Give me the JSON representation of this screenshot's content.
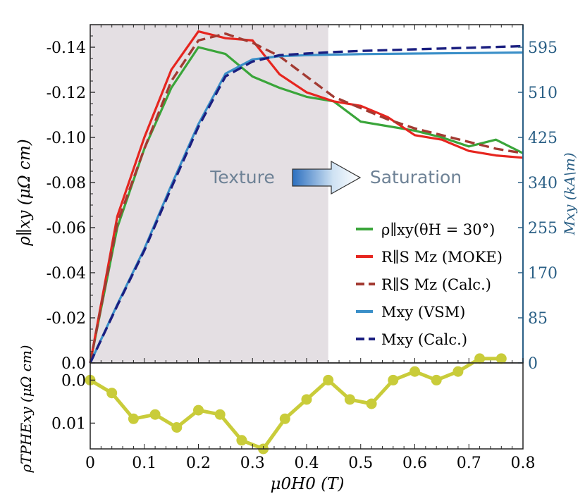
{
  "colors": {
    "green": "#3aa53a",
    "red": "#e6251f",
    "darkred": "#a33a32",
    "blue": "#3a8fc8",
    "navy": "#1b1f80",
    "yellow": "#c9cc3a",
    "shade": "#e4dfe3",
    "right_axis": "#2a5f85",
    "annotation": "#6e8296"
  },
  "chart_data": [
    {
      "type": "line",
      "xlim": [
        0,
        0.8
      ],
      "ylim": [
        0,
        -0.15
      ],
      "y2lim": [
        0,
        637.5
      ],
      "shaded_region": [
        0,
        0.44
      ],
      "grid": false,
      "legend_placement": "lower-right",
      "xticks": [
        "0",
        "0.1",
        "0.2",
        "0.3",
        "0.4",
        "0.5",
        "0.6",
        "0.7",
        "0.8"
      ],
      "yticks": [
        "0.0",
        "-0.02",
        "-0.04",
        "-0.06",
        "-0.08",
        "-0.10",
        "-0.12",
        "-0.14"
      ],
      "y2ticks": [
        "0",
        "85",
        "170",
        "255",
        "340",
        "425",
        "510",
        "595"
      ],
      "ylabel": "ρ∥xy (μΩ cm)",
      "y2label": "Mxy (kA\\m)",
      "annotations": {
        "left": "Texture",
        "right": "Saturation"
      },
      "series": [
        {
          "name": "ρ∥xy(θH = 30°)",
          "axis": "left",
          "style": "solid",
          "x": [
            0,
            0.05,
            0.1,
            0.15,
            0.2,
            0.25,
            0.3,
            0.35,
            0.4,
            0.45,
            0.5,
            0.55,
            0.6,
            0.65,
            0.7,
            0.75,
            0.8
          ],
          "y": [
            0,
            -0.06,
            -0.095,
            -0.122,
            -0.14,
            -0.137,
            -0.127,
            -0.122,
            -0.118,
            -0.116,
            -0.107,
            -0.105,
            -0.103,
            -0.1,
            -0.096,
            -0.099,
            -0.093
          ]
        },
        {
          "name": "R∥S Mz (MOKE)",
          "axis": "left",
          "style": "solid",
          "x": [
            0,
            0.05,
            0.1,
            0.15,
            0.2,
            0.25,
            0.3,
            0.35,
            0.4,
            0.45,
            0.5,
            0.55,
            0.6,
            0.65,
            0.7,
            0.75,
            0.8
          ],
          "y": [
            0,
            -0.065,
            -0.1,
            -0.13,
            -0.147,
            -0.144,
            -0.143,
            -0.128,
            -0.12,
            -0.116,
            -0.114,
            -0.109,
            -0.101,
            -0.099,
            -0.094,
            -0.092,
            -0.091
          ]
        },
        {
          "name": "R∥S Mz (Calc.)",
          "axis": "left",
          "style": "dashed",
          "x": [
            0,
            0.05,
            0.1,
            0.15,
            0.2,
            0.25,
            0.3,
            0.35,
            0.4,
            0.45,
            0.5,
            0.55,
            0.6,
            0.65,
            0.7,
            0.75,
            0.8
          ],
          "y": [
            0,
            -0.062,
            -0.095,
            -0.125,
            -0.143,
            -0.146,
            -0.142,
            -0.136,
            -0.127,
            -0.118,
            -0.113,
            -0.108,
            -0.104,
            -0.101,
            -0.098,
            -0.095,
            -0.093
          ]
        },
        {
          "name": "Mxy (VSM)",
          "axis": "right",
          "style": "solid",
          "x": [
            0,
            0.05,
            0.1,
            0.15,
            0.2,
            0.25,
            0.3,
            0.35,
            0.4,
            0.45,
            0.5,
            0.6,
            0.7,
            0.8
          ],
          "y": [
            0,
            110,
            215,
            335,
            450,
            545,
            572,
            578,
            580,
            581,
            582,
            583,
            584,
            585
          ]
        },
        {
          "name": "Mxy (Calc.)",
          "axis": "right",
          "style": "dashed",
          "x": [
            0,
            0.05,
            0.1,
            0.15,
            0.2,
            0.25,
            0.3,
            0.35,
            0.4,
            0.45,
            0.5,
            0.6,
            0.7,
            0.8
          ],
          "y": [
            0,
            108,
            212,
            330,
            445,
            540,
            568,
            580,
            583,
            586,
            588,
            591,
            594,
            597
          ]
        }
      ]
    },
    {
      "type": "line",
      "xlim": [
        0,
        0.8
      ],
      "ylim": [
        -0.004,
        0.016
      ],
      "xlabel": "μ0H0 (T)",
      "ylabel": "ρTPHExy (μΩ cm)",
      "yticks": [
        "0.0",
        "0.01"
      ],
      "series": [
        {
          "name": "",
          "markers": "circle",
          "x": [
            0,
            0.04,
            0.08,
            0.12,
            0.16,
            0.2,
            0.24,
            0.28,
            0.32,
            0.36,
            0.4,
            0.44,
            0.48,
            0.52,
            0.56,
            0.6,
            0.64,
            0.68,
            0.72,
            0.76
          ],
          "y": [
            0.0,
            0.003,
            0.009,
            0.008,
            0.011,
            0.007,
            0.008,
            0.014,
            0.016,
            0.009,
            0.0045,
            0.0,
            0.0045,
            0.0055,
            0.0,
            -0.002,
            0.0,
            -0.002,
            -0.005,
            -0.005
          ]
        }
      ]
    }
  ]
}
